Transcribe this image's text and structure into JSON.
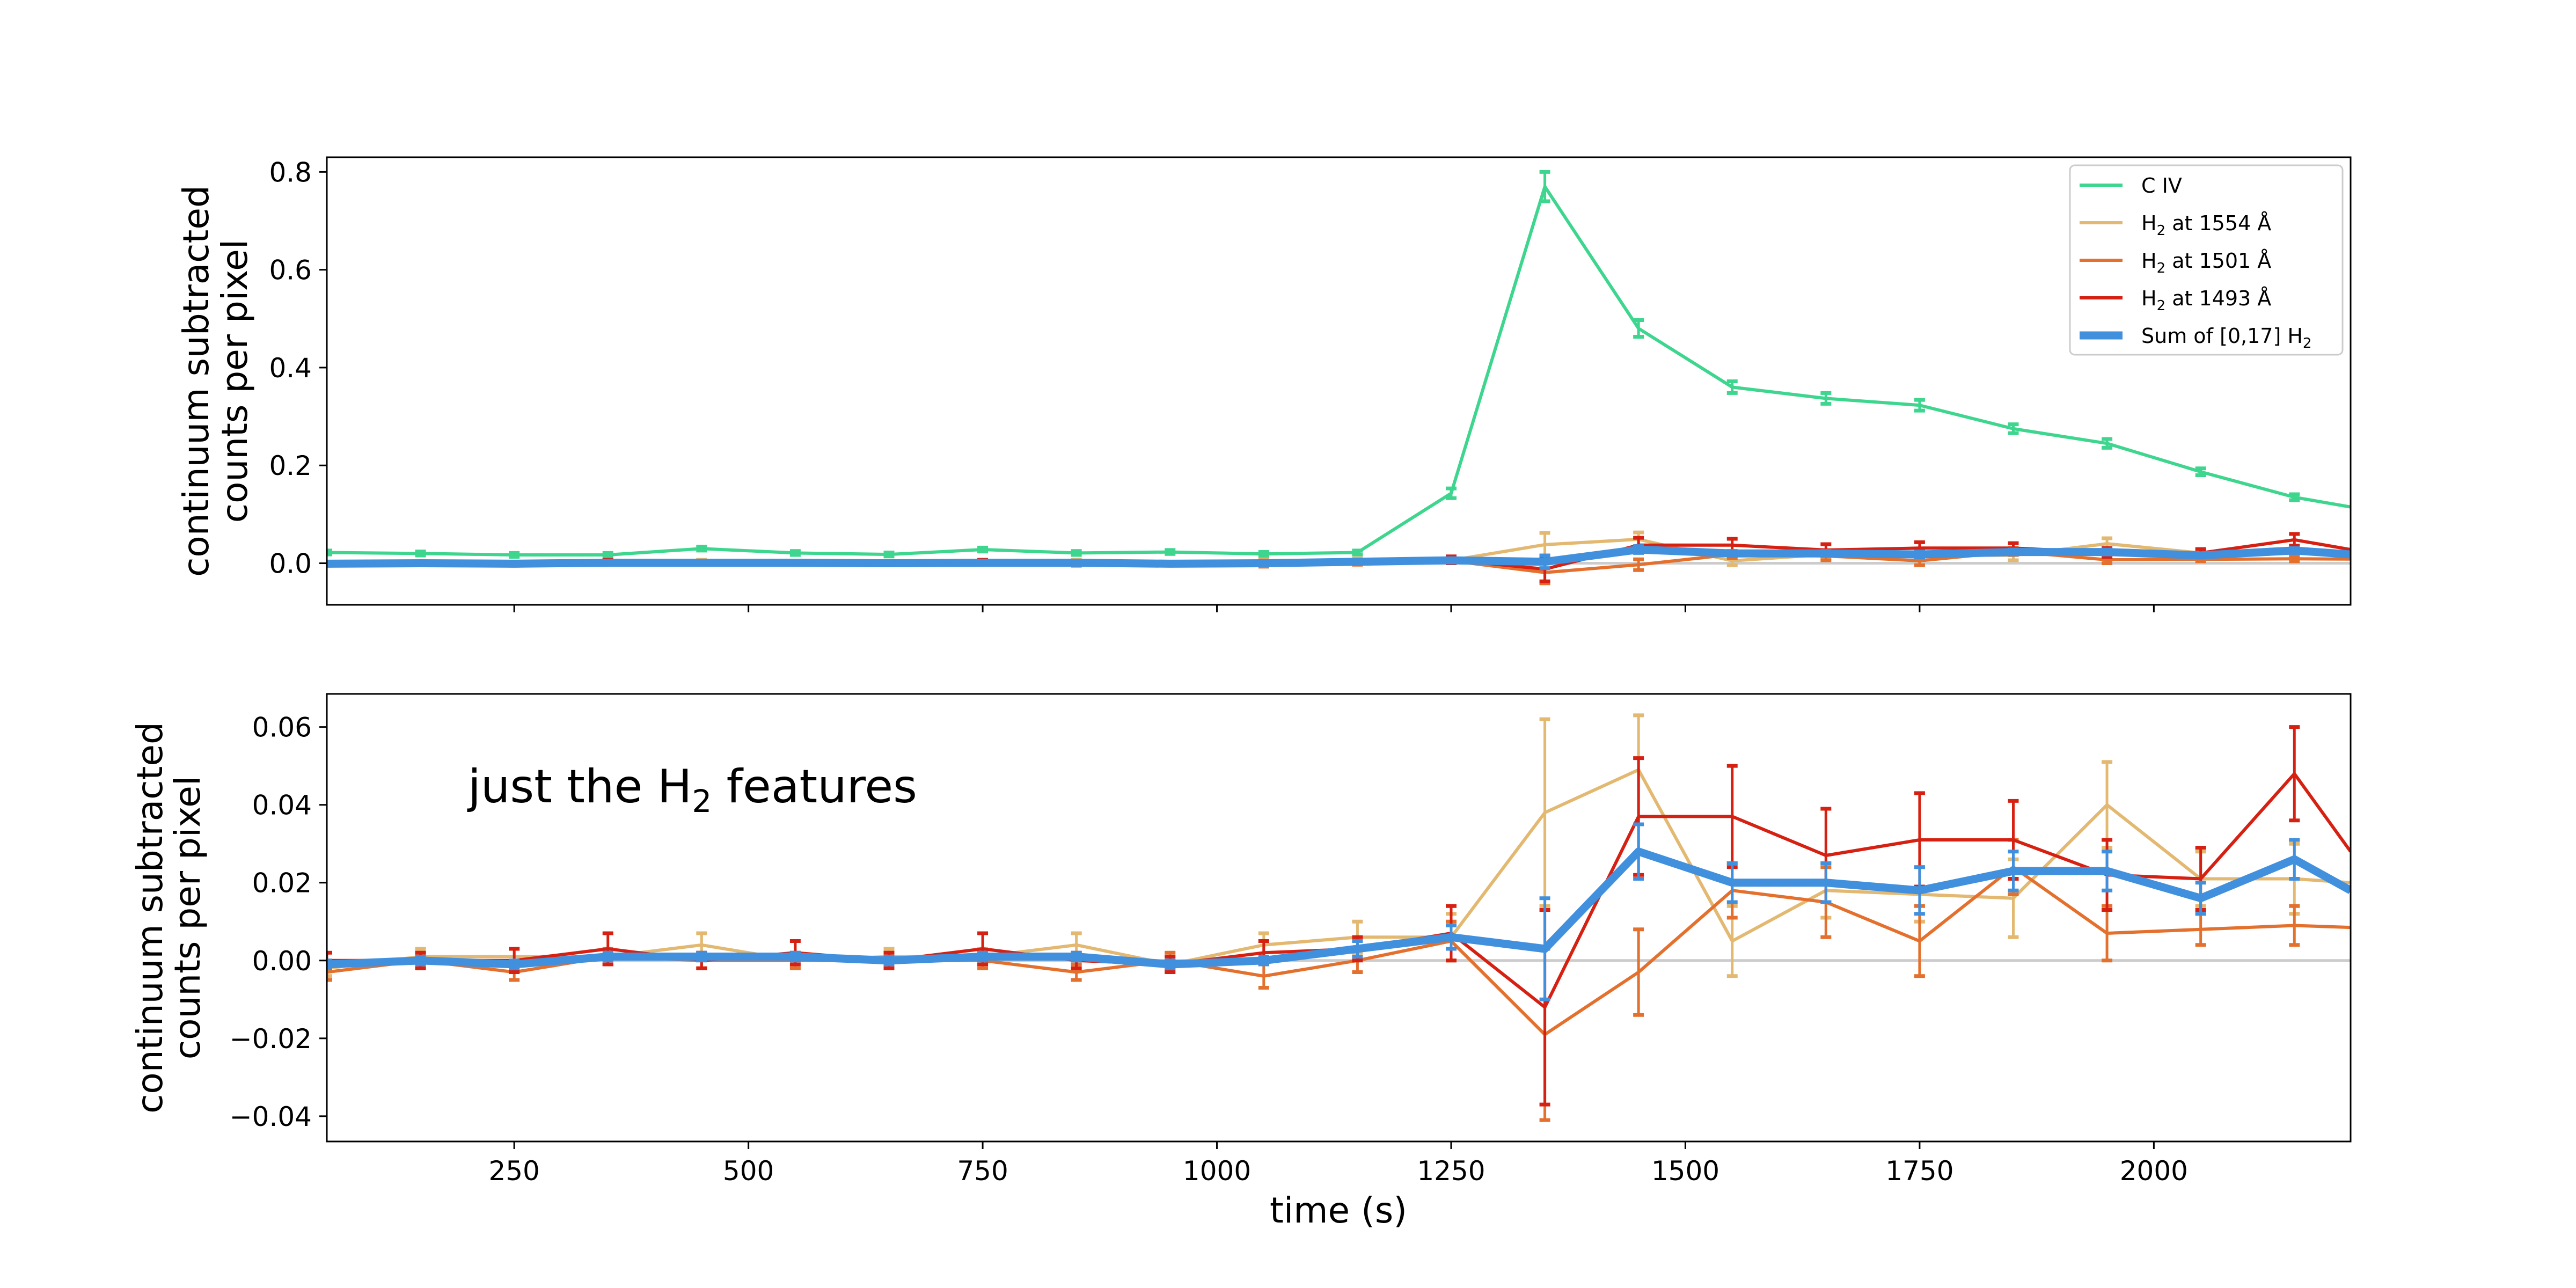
{
  "chart_data": [
    {
      "type": "line",
      "xlabel": "",
      "ylabel_line1": "continuum subtracted",
      "ylabel_line2": "counts per pixel",
      "xlim": [
        50,
        2210
      ],
      "ylim": [
        -0.085,
        0.83
      ],
      "yticks": [
        0.0,
        0.2,
        0.4,
        0.6,
        0.8
      ],
      "ytick_labels": [
        "0.0",
        "0.2",
        "0.4",
        "0.6",
        "0.8"
      ],
      "xticks": [
        250,
        500,
        750,
        1000,
        1250,
        1500,
        1750,
        2000
      ],
      "xtick_labels": [],
      "legend_placement": "top-right",
      "x": [
        50,
        150,
        250,
        350,
        450,
        550,
        650,
        750,
        850,
        950,
        1050,
        1150,
        1250,
        1350,
        1450,
        1550,
        1650,
        1750,
        1850,
        1950,
        2050,
        2150,
        2210
      ],
      "series": [
        {
          "name": "C IV",
          "color": "#3ed68e",
          "width": "thin",
          "values": [
            0.022,
            0.02,
            0.017,
            0.017,
            0.03,
            0.021,
            0.018,
            0.028,
            0.021,
            0.023,
            0.019,
            0.022,
            0.143,
            0.77,
            0.48,
            0.36,
            0.337,
            0.323,
            0.275,
            0.245,
            0.187,
            0.135,
            0.115
          ],
          "errors": [
            0.004,
            0.004,
            0.004,
            0.004,
            0.004,
            0.004,
            0.004,
            0.004,
            0.004,
            0.004,
            0.004,
            0.004,
            0.01,
            0.03,
            0.017,
            0.012,
            0.011,
            0.011,
            0.009,
            0.009,
            0.007,
            0.006,
            0
          ]
        },
        {
          "name": "H2 at 1554 Å",
          "name_main": "H",
          "name_sub": "2",
          "name_rest": " at 1554 Å",
          "color": "#e3b870",
          "width": "thin",
          "values": [
            -0.002,
            0.001,
            0.001,
            0.001,
            0.004,
            0.0,
            0.001,
            0.001,
            0.004,
            -0.001,
            0.004,
            0.006,
            0.006,
            0.038,
            0.049,
            0.005,
            0.018,
            0.017,
            0.016,
            0.04,
            0.021,
            0.021,
            0.02
          ],
          "errors": [
            0.002,
            0.002,
            0.002,
            0.002,
            0.003,
            0.002,
            0.002,
            0.002,
            0.003,
            0.002,
            0.003,
            0.004,
            0.006,
            0.024,
            0.014,
            0.009,
            0.007,
            0.007,
            0.01,
            0.011,
            0.007,
            0.009,
            0
          ]
        },
        {
          "name": "H2 at 1501 Å",
          "name_main": "H",
          "name_sub": "2",
          "name_rest": " at 1501 Å",
          "color": "#e4702e",
          "width": "thin",
          "values": [
            -0.003,
            0.0,
            -0.003,
            0.001,
            0.0,
            0.0,
            0.0,
            0.0,
            -0.003,
            0.0,
            -0.004,
            0.0,
            0.005,
            -0.019,
            -0.003,
            0.018,
            0.015,
            0.005,
            0.024,
            0.007,
            0.008,
            0.009,
            0.0085
          ],
          "errors": [
            0.002,
            0.002,
            0.002,
            0.002,
            0.002,
            0.002,
            0.002,
            0.002,
            0.002,
            0.002,
            0.003,
            0.003,
            0.005,
            0.022,
            0.011,
            0.007,
            0.009,
            0.009,
            0.007,
            0.007,
            0.004,
            0.005,
            0
          ]
        },
        {
          "name": "H2 at 1493 Å",
          "name_main": "H",
          "name_sub": "2",
          "name_rest": " at 1493 Å",
          "color": "#d62012",
          "width": "thin",
          "values": [
            0.0,
            0.0,
            0.0,
            0.003,
            0.0,
            0.002,
            0.0,
            0.003,
            0.0,
            -0.001,
            0.002,
            0.003,
            0.007,
            -0.012,
            0.037,
            0.037,
            0.027,
            0.031,
            0.031,
            0.022,
            0.021,
            0.048,
            0.028
          ],
          "errors": [
            0.002,
            0.002,
            0.003,
            0.004,
            0.002,
            0.003,
            0.002,
            0.004,
            0.002,
            0.002,
            0.003,
            0.003,
            0.007,
            0.025,
            0.015,
            0.013,
            0.012,
            0.012,
            0.01,
            0.009,
            0.008,
            0.012,
            0
          ]
        },
        {
          "name": "Sum of [0,17] H2",
          "name_main": "Sum of [0,17] H",
          "name_sub": "2",
          "name_rest": "",
          "color": "#4190de",
          "width": "thick",
          "values": [
            -0.001,
            0.0,
            -0.001,
            0.001,
            0.001,
            0.001,
            0.0,
            0.001,
            0.001,
            -0.001,
            0.0,
            0.003,
            0.006,
            0.003,
            0.028,
            0.02,
            0.02,
            0.018,
            0.023,
            0.023,
            0.016,
            0.026,
            0.018
          ],
          "errors": [
            0.001,
            0.001,
            0.001,
            0.001,
            0.001,
            0.001,
            0.001,
            0.001,
            0.001,
            0.001,
            0.001,
            0.002,
            0.003,
            0.013,
            0.007,
            0.005,
            0.005,
            0.006,
            0.005,
            0.005,
            0.004,
            0.005,
            0
          ]
        }
      ]
    },
    {
      "type": "line",
      "xlabel": "time (s)",
      "ylabel_line1": "continuum subtracted",
      "ylabel_line2": "counts per pixel",
      "annotation_main": "just the H",
      "annotation_sub": "2",
      "annotation_rest": " features",
      "xlim": [
        50,
        2210
      ],
      "ylim": [
        -0.0465,
        0.0685
      ],
      "yticks": [
        -0.04,
        -0.02,
        0.0,
        0.02,
        0.04,
        0.06
      ],
      "ytick_labels": [
        "−0.04",
        "−0.02",
        "0.00",
        "0.02",
        "0.04",
        "0.06"
      ],
      "xticks": [
        250,
        500,
        750,
        1000,
        1250,
        1500,
        1750,
        2000
      ],
      "xtick_labels": [
        "250",
        "500",
        "750",
        "1000",
        "1250",
        "1500",
        "1750",
        "2000"
      ],
      "uses_series_from_panel": 0,
      "series_indices": [
        1,
        2,
        3,
        4
      ]
    }
  ]
}
